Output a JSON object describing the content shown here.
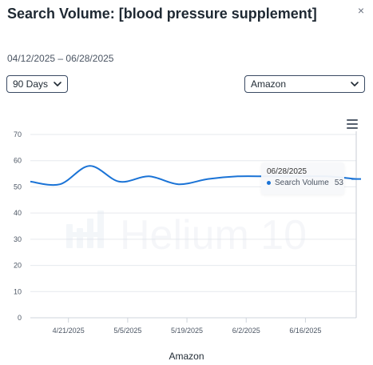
{
  "modal": {
    "title": "Search Volume: [blood pressure supplement]",
    "close_label": "×",
    "date_range": "04/12/2025 – 06/28/2025"
  },
  "controls": {
    "period_select": {
      "value": "90 Days"
    },
    "marketplace_select": {
      "value": "Amazon"
    }
  },
  "watermark": "Helium 10",
  "tooltip": {
    "date": "06/28/2025",
    "series": "Search Volume",
    "value": "53"
  },
  "colors": {
    "line": "#1a73d6",
    "grid": "#e6e9ee",
    "text": "#1f2933"
  },
  "chart_data": {
    "type": "line",
    "title": "",
    "xlabel": "Amazon",
    "ylabel": "",
    "ylim": [
      0,
      70
    ],
    "yticks": [
      0,
      10,
      20,
      30,
      40,
      50,
      60,
      70
    ],
    "xlim": [
      "2025-04-12",
      "2025-06-28"
    ],
    "xticks": [
      "4/21/2025",
      "5/5/2025",
      "5/19/2025",
      "6/2/2025",
      "6/16/2025"
    ],
    "grid": true,
    "series": [
      {
        "name": "Search Volume",
        "x": [
          "2025-04-12",
          "2025-04-19",
          "2025-04-26",
          "2025-05-03",
          "2025-05-10",
          "2025-05-17",
          "2025-05-24",
          "2025-05-31",
          "2025-06-07",
          "2025-06-14",
          "2025-06-21",
          "2025-06-28"
        ],
        "y": [
          52,
          51,
          58,
          52,
          54,
          51,
          53,
          54,
          54,
          54,
          54,
          53
        ]
      }
    ]
  }
}
